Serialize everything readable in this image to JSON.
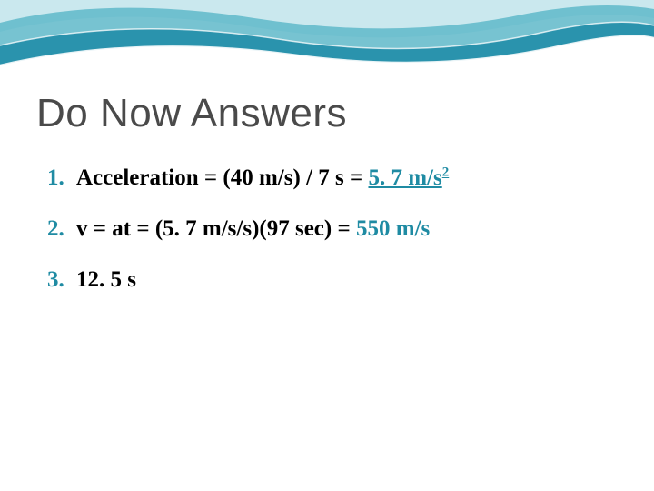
{
  "slide": {
    "title": "Do Now Answers",
    "background_color": "#ffffff",
    "title_color": "#4a4a4a",
    "title_fontsize": 44,
    "accent_color": "#1f8ba3",
    "text_color": "#000000",
    "body_fontsize": 25,
    "wave_colors": {
      "light": "#b8e0e8",
      "medium": "#5fb8c9",
      "dark": "#2a93ad"
    },
    "answers": [
      {
        "number": "1.",
        "parts": [
          {
            "text": "Acceleration = (40 m/s) / 7 s = ",
            "highlight": false
          },
          {
            "text": "5. 7 m/s",
            "highlight": true,
            "underline": true
          },
          {
            "text": "2",
            "highlight": true,
            "super": true,
            "underline": true
          }
        ]
      },
      {
        "number": "2.",
        "parts": [
          {
            "text": "v = at = (5. 7 m/s/s)(97 sec) = ",
            "highlight": false
          },
          {
            "text": "550 m/s",
            "highlight": true
          }
        ]
      },
      {
        "number": "3.",
        "parts": [
          {
            "text": "12. 5 s",
            "highlight": false
          }
        ]
      }
    ]
  }
}
